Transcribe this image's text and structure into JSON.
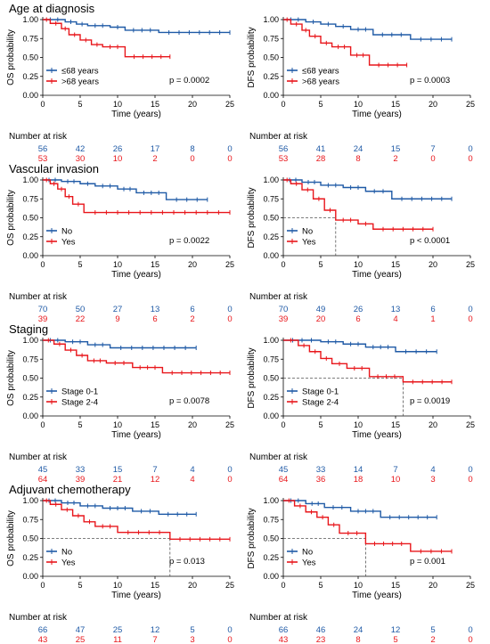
{
  "colors": {
    "group1": "#1f5aa6",
    "group2": "#e8161b",
    "axis": "#000000",
    "ref": "#555555"
  },
  "chart_data": [
    {
      "type": "line",
      "section_title": "Age at diagnosis",
      "xlabel": "Time (years)",
      "ylabel": "OS probability",
      "xlim": [
        0,
        25
      ],
      "ylim": [
        0,
        1
      ],
      "x_ticks": [
        "0",
        "5",
        "10",
        "15",
        "20",
        "25"
      ],
      "y_ticks": [
        "0.00",
        "0.25",
        "0.50",
        "0.75",
        "1.00"
      ],
      "legend_position": "bottom-left",
      "p_value": "p = 0.0002",
      "risk_table_title": "Number at risk",
      "series": [
        {
          "name": "≤68 years",
          "color": "#1f5aa6",
          "x": [
            0,
            3,
            4.5,
            6,
            9,
            11,
            15.5,
            25
          ],
          "y": [
            1.0,
            0.97,
            0.94,
            0.92,
            0.9,
            0.86,
            0.83,
            0.83
          ],
          "at_risk": [
            "56",
            "42",
            "26",
            "17",
            "8",
            "0"
          ]
        },
        {
          "name": ">68 years",
          "color": "#e8161b",
          "x": [
            0,
            1,
            2.5,
            3.5,
            5,
            6.5,
            8,
            11,
            17
          ],
          "y": [
            1.0,
            0.95,
            0.88,
            0.8,
            0.73,
            0.67,
            0.64,
            0.51,
            0.51
          ],
          "at_risk": [
            "53",
            "30",
            "10",
            "2",
            "0",
            "0"
          ]
        }
      ]
    },
    {
      "type": "line",
      "section_title": "",
      "xlabel": "Time (years)",
      "ylabel": "DFS probability",
      "xlim": [
        0,
        25
      ],
      "ylim": [
        0,
        1
      ],
      "x_ticks": [
        "0",
        "5",
        "10",
        "15",
        "20",
        "25"
      ],
      "y_ticks": [
        "0.00",
        "0.25",
        "0.50",
        "0.75",
        "1.00"
      ],
      "legend_position": "bottom-left",
      "p_value": "p = 0.0003",
      "risk_table_title": "Number at risk",
      "series": [
        {
          "name": "≤68 years",
          "color": "#1f5aa6",
          "x": [
            0,
            3,
            5,
            7,
            9,
            12,
            17,
            22.5
          ],
          "y": [
            1.0,
            0.97,
            0.94,
            0.91,
            0.87,
            0.8,
            0.74,
            0.74
          ],
          "at_risk": [
            "56",
            "41",
            "24",
            "15",
            "7",
            "0"
          ]
        },
        {
          "name": ">68 years",
          "color": "#e8161b",
          "x": [
            0,
            1,
            2.5,
            3.5,
            5,
            6.5,
            9,
            11.5,
            16.5
          ],
          "y": [
            1.0,
            0.94,
            0.86,
            0.78,
            0.69,
            0.64,
            0.53,
            0.4,
            0.4
          ],
          "at_risk": [
            "53",
            "28",
            "8",
            "2",
            "0",
            "0"
          ]
        }
      ]
    },
    {
      "type": "line",
      "section_title": "Vascular invasion",
      "xlabel": "Time (years)",
      "ylabel": "OS probability",
      "xlim": [
        0,
        25
      ],
      "ylim": [
        0,
        1
      ],
      "x_ticks": [
        "0",
        "5",
        "10",
        "15",
        "20",
        "25"
      ],
      "y_ticks": [
        "0.00",
        "0.25",
        "0.50",
        "0.75",
        "1.00"
      ],
      "legend_position": "bottom-left",
      "p_value": "p = 0.0022",
      "risk_table_title": "Number at risk",
      "series": [
        {
          "name": "No",
          "color": "#1f5aa6",
          "x": [
            0,
            2.5,
            5,
            7,
            10,
            12.5,
            16.5,
            22
          ],
          "y": [
            1.0,
            0.98,
            0.95,
            0.92,
            0.88,
            0.83,
            0.74,
            0.74
          ],
          "at_risk": [
            "70",
            "50",
            "27",
            "13",
            "6",
            "0"
          ]
        },
        {
          "name": "Yes",
          "color": "#e8161b",
          "x": [
            0,
            1,
            2,
            3,
            4,
            5.5,
            25
          ],
          "y": [
            1.0,
            0.95,
            0.88,
            0.78,
            0.68,
            0.57,
            0.57
          ],
          "at_risk": [
            "39",
            "22",
            "9",
            "6",
            "2",
            "0"
          ]
        }
      ]
    },
    {
      "type": "line",
      "section_title": "",
      "xlabel": "Time (years)",
      "ylabel": "DFS probability",
      "xlim": [
        0,
        25
      ],
      "ylim": [
        0,
        1
      ],
      "x_ticks": [
        "0",
        "5",
        "10",
        "15",
        "20",
        "25"
      ],
      "y_ticks": [
        "0.00",
        "0.25",
        "0.50",
        "0.75",
        "1.00"
      ],
      "legend_position": "bottom-left",
      "p_value": "p < 0.0001",
      "risk_table_title": "Number at risk",
      "median_x": 7,
      "series": [
        {
          "name": "No",
          "color": "#1f5aa6",
          "x": [
            0,
            2.5,
            5,
            8,
            11,
            14.5,
            22.5
          ],
          "y": [
            1.0,
            0.97,
            0.93,
            0.9,
            0.85,
            0.75,
            0.75
          ],
          "at_risk": [
            "70",
            "49",
            "26",
            "13",
            "6",
            "0"
          ]
        },
        {
          "name": "Yes",
          "color": "#e8161b",
          "x": [
            0,
            1,
            2.5,
            4,
            5.5,
            7,
            10,
            12,
            20
          ],
          "y": [
            1.0,
            0.95,
            0.87,
            0.75,
            0.6,
            0.47,
            0.42,
            0.35,
            0.35
          ],
          "at_risk": [
            "39",
            "20",
            "6",
            "4",
            "1",
            "0"
          ]
        }
      ]
    },
    {
      "type": "line",
      "section_title": "Staging",
      "xlabel": "Time (years)",
      "ylabel": "OS probability",
      "xlim": [
        0,
        25
      ],
      "ylim": [
        0,
        1
      ],
      "x_ticks": [
        "0",
        "5",
        "10",
        "15",
        "20",
        "25"
      ],
      "y_ticks": [
        "0.00",
        "0.25",
        "0.50",
        "0.75",
        "1.00"
      ],
      "legend_position": "bottom-left",
      "p_value": "p = 0.0078",
      "risk_table_title": "Number at risk",
      "series": [
        {
          "name": "Stage 0-1",
          "color": "#1f5aa6",
          "x": [
            0,
            3,
            6,
            9,
            20.5
          ],
          "y": [
            1.0,
            0.98,
            0.94,
            0.9,
            0.9
          ],
          "at_risk": [
            "45",
            "33",
            "15",
            "7",
            "4",
            "0"
          ]
        },
        {
          "name": "Stage 2-4",
          "color": "#e8161b",
          "x": [
            0,
            1.5,
            3,
            4.5,
            6,
            8.5,
            12,
            16,
            25
          ],
          "y": [
            1.0,
            0.95,
            0.87,
            0.8,
            0.73,
            0.7,
            0.64,
            0.57,
            0.57
          ],
          "at_risk": [
            "64",
            "39",
            "21",
            "12",
            "4",
            "0"
          ]
        }
      ]
    },
    {
      "type": "line",
      "section_title": "",
      "xlabel": "Time (years)",
      "ylabel": "DFS probability",
      "xlim": [
        0,
        25
      ],
      "ylim": [
        0,
        1
      ],
      "x_ticks": [
        "0",
        "5",
        "10",
        "15",
        "20",
        "25"
      ],
      "y_ticks": [
        "0.00",
        "0.25",
        "0.50",
        "0.75",
        "1.00"
      ],
      "legend_position": "bottom-left",
      "p_value": "p = 0.0019",
      "risk_table_title": "Number at risk",
      "median_x": 16,
      "series": [
        {
          "name": "Stage 0-1",
          "color": "#1f5aa6",
          "x": [
            0,
            5,
            8,
            11,
            15,
            20.5
          ],
          "y": [
            1.0,
            0.98,
            0.95,
            0.91,
            0.85,
            0.85
          ],
          "at_risk": [
            "45",
            "33",
            "14",
            "7",
            "4",
            "0"
          ]
        },
        {
          "name": "Stage 2-4",
          "color": "#e8161b",
          "x": [
            0,
            2,
            3.5,
            5,
            6.5,
            8.5,
            11.5,
            16,
            22.5
          ],
          "y": [
            1.0,
            0.93,
            0.85,
            0.76,
            0.69,
            0.63,
            0.52,
            0.45,
            0.45
          ],
          "at_risk": [
            "64",
            "36",
            "18",
            "10",
            "3",
            "0"
          ]
        }
      ]
    },
    {
      "type": "line",
      "section_title": "Adjuvant chemotherapy",
      "xlabel": "Time (years)",
      "ylabel": "OS probability",
      "xlim": [
        0,
        25
      ],
      "ylim": [
        0,
        1
      ],
      "x_ticks": [
        "0",
        "5",
        "10",
        "15",
        "20",
        "25"
      ],
      "y_ticks": [
        "0.00",
        "0.25",
        "0.50",
        "0.75",
        "1.00"
      ],
      "legend_position": "bottom-left",
      "p_value": "p = 0.013",
      "risk_table_title": "Number at risk",
      "median_x": 17,
      "series": [
        {
          "name": "No",
          "color": "#1f5aa6",
          "x": [
            0,
            2.5,
            5,
            8,
            12,
            15.5,
            20.5
          ],
          "y": [
            1.0,
            0.97,
            0.93,
            0.9,
            0.86,
            0.82,
            0.82
          ],
          "at_risk": [
            "66",
            "47",
            "25",
            "12",
            "5",
            "0"
          ]
        },
        {
          "name": "Yes",
          "color": "#e8161b",
          "x": [
            0,
            1,
            2.5,
            4,
            5.5,
            7,
            10,
            17,
            25
          ],
          "y": [
            1.0,
            0.95,
            0.88,
            0.8,
            0.72,
            0.66,
            0.58,
            0.49,
            0.49
          ],
          "at_risk": [
            "43",
            "25",
            "11",
            "7",
            "3",
            "0"
          ]
        }
      ]
    },
    {
      "type": "line",
      "section_title": "",
      "xlabel": "Time (years)",
      "ylabel": "DFS probability",
      "xlim": [
        0,
        25
      ],
      "ylim": [
        0,
        1
      ],
      "x_ticks": [
        "0",
        "5",
        "10",
        "15",
        "20",
        "25"
      ],
      "y_ticks": [
        "0.00",
        "0.25",
        "0.50",
        "0.75",
        "1.00"
      ],
      "legend_position": "bottom-left",
      "p_value": "p = 0.001",
      "risk_table_title": "Number at risk",
      "median_x": 11,
      "series": [
        {
          "name": "No",
          "color": "#1f5aa6",
          "x": [
            0,
            3,
            5.5,
            9,
            13,
            20.5
          ],
          "y": [
            1.0,
            0.96,
            0.91,
            0.86,
            0.78,
            0.78
          ],
          "at_risk": [
            "66",
            "46",
            "24",
            "12",
            "5",
            "0"
          ]
        },
        {
          "name": "Yes",
          "color": "#e8161b",
          "x": [
            0,
            1.5,
            3,
            4.5,
            6,
            7.5,
            11,
            17,
            22.5
          ],
          "y": [
            1.0,
            0.93,
            0.85,
            0.78,
            0.68,
            0.57,
            0.43,
            0.33,
            0.33
          ],
          "at_risk": [
            "43",
            "23",
            "8",
            "5",
            "2",
            "0"
          ]
        }
      ]
    }
  ]
}
